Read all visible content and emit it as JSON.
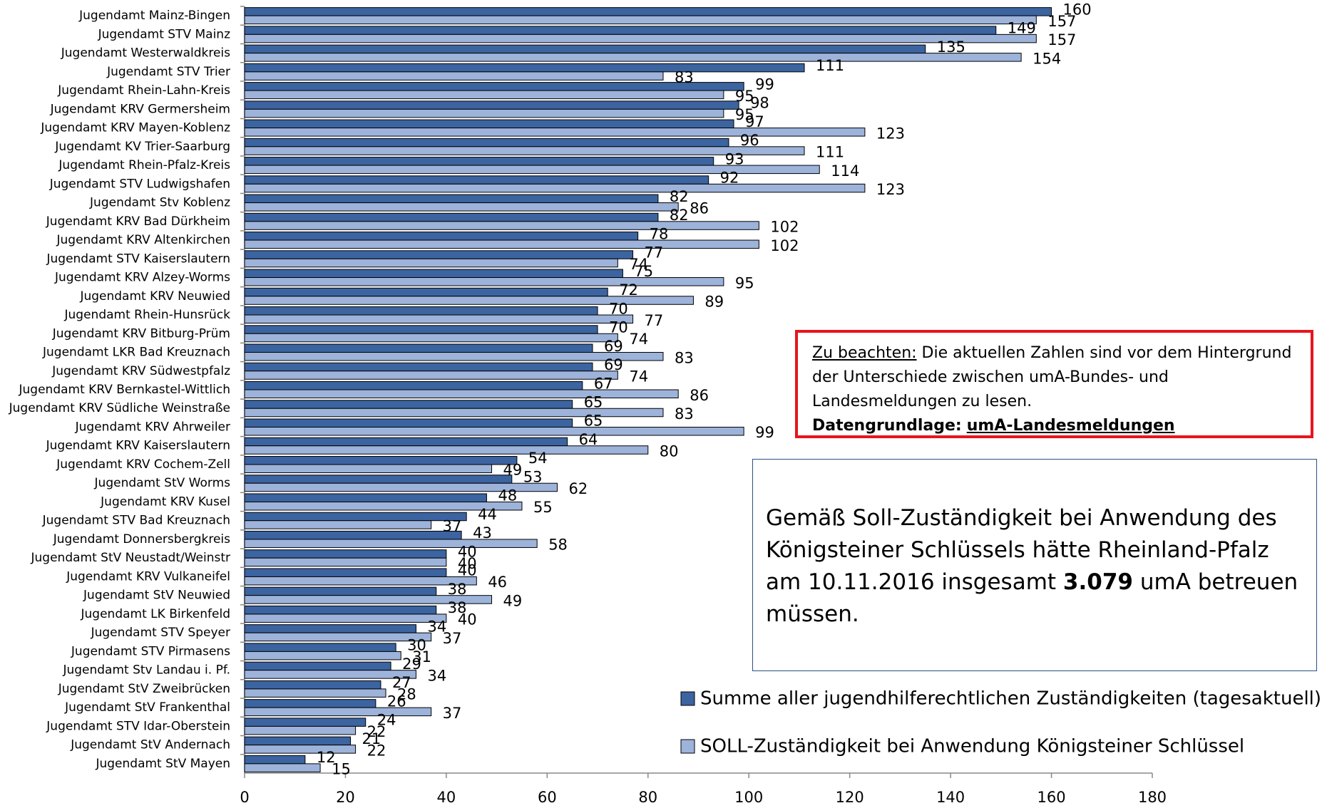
{
  "chart_data": {
    "type": "hbar",
    "categories": [
      "Jugendamt Mainz-Bingen",
      "Jugendamt STV Mainz",
      "Jugendamt Westerwaldkreis",
      "Jugendamt STV Trier",
      "Jugendamt Rhein-Lahn-Kreis",
      "Jugendamt KRV Germersheim",
      "Jugendamt KRV Mayen-Koblenz",
      "Jugendamt KV Trier-Saarburg",
      "Jugendamt Rhein-Pfalz-Kreis",
      "Jugendamt STV Ludwigshafen",
      "Jugendamt Stv Koblenz",
      "Jugendamt KRV Bad Dürkheim",
      "Jugendamt KRV Altenkirchen",
      "Jugendamt STV Kaiserslautern",
      "Jugendamt KRV Alzey-Worms",
      "Jugendamt KRV Neuwied",
      "Jugendamt Rhein-Hunsrück",
      "Jugendamt KRV Bitburg-Prüm",
      "Jugendamt LKR Bad Kreuznach",
      "Jugendamt KRV Südwestpfalz",
      "Jugendamt KRV Bernkastel-Wittlich",
      "Jugendamt KRV Südliche Weinstraße",
      "Jugendamt KRV Ahrweiler",
      "Jugendamt KRV Kaiserslautern",
      "Jugendamt KRV Cochem-Zell",
      "Jugendamt StV Worms",
      "Jugendamt KRV Kusel",
      "Jugendamt STV Bad Kreuznach",
      "Jugendamt Donnersbergkreis",
      "Jugendamt StV Neustadt/Weinstr",
      "Jugendamt KRV Vulkaneifel",
      "Jugendamt StV Neuwied",
      "Jugendamt LK Birkenfeld",
      "Jugendamt STV Speyer",
      "Jugendamt STV Pirmasens",
      "Jugendamt Stv Landau i. Pf.",
      "Jugendamt StV Zweibrücken",
      "Jugendamt StV Frankenthal",
      "Jugendamt STV Idar-Oberstein",
      "Jugendamt StV Andernach",
      "Jugendamt StV Mayen"
    ],
    "series": [
      {
        "name": "Summe aller jugendhilferechtlichen Zuständigkeiten (tagesaktuell)",
        "color": "#3b64a0",
        "values": [
          160,
          149,
          135,
          111,
          99,
          98,
          97,
          96,
          93,
          92,
          82,
          82,
          78,
          77,
          75,
          72,
          70,
          70,
          69,
          69,
          67,
          65,
          65,
          64,
          54,
          53,
          48,
          44,
          43,
          40,
          40,
          38,
          38,
          34,
          30,
          29,
          27,
          26,
          24,
          21,
          12
        ]
      },
      {
        "name": "SOLL-Zuständigkeit bei Anwendung Königsteiner Schlüssel",
        "color": "#9db3da",
        "values": [
          157,
          157,
          154,
          83,
          95,
          95,
          123,
          111,
          114,
          123,
          86,
          102,
          102,
          74,
          95,
          89,
          77,
          74,
          83,
          74,
          86,
          83,
          99,
          80,
          49,
          62,
          55,
          37,
          58,
          40,
          46,
          49,
          40,
          37,
          31,
          34,
          28,
          37,
          22,
          22,
          15
        ]
      }
    ],
    "xlim": [
      0,
      180
    ],
    "xticks": [
      0,
      20,
      40,
      60,
      80,
      100,
      120,
      140,
      160,
      180
    ],
    "note": {
      "lead": "Zu beachten:",
      "text": "Die aktuellen Zahlen sind vor dem Hintergrund der Unterschiede zwischen umA-Bundes- und Landesmeldungen zu lesen.",
      "basis_label": "Datengrundlage:",
      "basis": "umA-Landesmeldungen"
    },
    "info": {
      "before": "Gemäß Soll-Zuständigkeit bei Anwendung des Königsteiner Schlüssels hätte Rheinland-Pfalz am 10.11.2016 insgesamt",
      "bold": "3.079",
      "after": "umA betreuen müssen."
    }
  }
}
